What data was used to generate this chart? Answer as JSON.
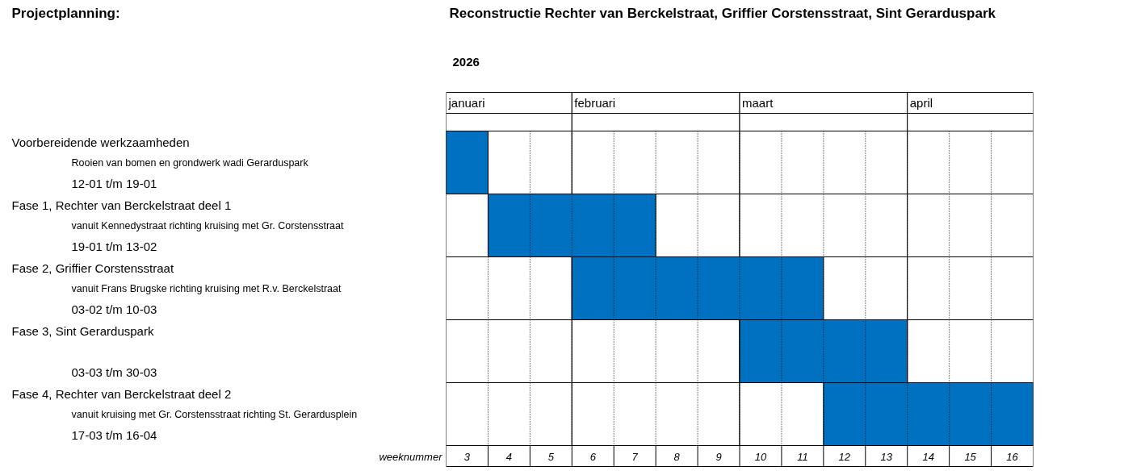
{
  "chart_data": {
    "type": "bar",
    "orientation": "horizontal",
    "title": "Projectplanning:",
    "subtitle": "Reconstructie Rechter van Berckelstraat, Griffier Corstensstraat, Sint Gerarduspark",
    "annotations": [
      "2026"
    ],
    "xlabel": "weeknummer",
    "categories": [
      "Voorbereidende werkzaamheden\nRooien van bomen en grondwerk wadi Gerarduspark\n12-01 t/m 19-01",
      "Fase 1,    Rechter van Berckelstraat deel 1\nvanuit Kennedystraat richting kruising met Gr. Corstensstraat\n19-01 t/m 13-02",
      "Fase 2,    Griffier Corstensstraat\nvanuit Frans Brugske richting kruising met R.v. Berckelstraat\n03-02 t/m 10-03",
      "Fase 3,    Sint Gerarduspark\n\n03-03 t/m 30-03",
      "Fase 4,    Rechter van Berckelstraat deel 2\nvanuit kruising met Gr. Corstensstraat richting St. Gerardusplein\n17-03 t/m 16-04"
    ],
    "base": [
      2.5,
      3.5,
      5.5,
      9.5,
      11.5
    ],
    "values": [
      1,
      4,
      6,
      4,
      5
    ],
    "color": "#0070c0",
    "xlim": [
      2.5,
      16.5
    ],
    "xticks": [
      3,
      4,
      5,
      6,
      7,
      8,
      9,
      10,
      11,
      12,
      13,
      14,
      15,
      16
    ],
    "bands": [
      {
        "axis": "x",
        "from": 2.5,
        "to": 5.5,
        "label": "januari",
        "color": "#ffffff"
      },
      {
        "axis": "x",
        "from": 5.5,
        "to": 9.5,
        "label": "februari",
        "color": "#ffffff"
      },
      {
        "axis": "x",
        "from": 9.5,
        "to": 13.5,
        "label": "maart",
        "color": "#ffffff"
      },
      {
        "axis": "x",
        "from": 13.5,
        "to": 16.5,
        "label": "april",
        "color": "#ffffff"
      }
    ],
    "grid": "x"
  }
}
